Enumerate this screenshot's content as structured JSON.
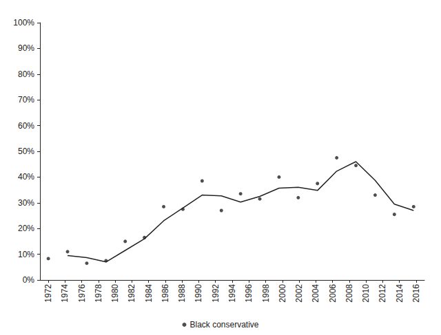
{
  "chart_data": {
    "type": "scatter",
    "x": [
      1972,
      1974.3,
      1976.6,
      1978.9,
      1981.2,
      1983.5,
      1985.8,
      1988.1,
      1990.4,
      1992.7,
      1995,
      1997.3,
      1999.6,
      2001.9,
      2004.2,
      2006.5,
      2008.8,
      2011.1,
      2013.4,
      2015.7
    ],
    "series": [
      {
        "name": "Black conservative",
        "type": "scatter",
        "marker": "circle",
        "color": "#222222",
        "values": [
          8.3,
          11,
          6.5,
          7.5,
          15,
          16.5,
          28.5,
          27.5,
          38.5,
          27,
          33.5,
          31.5,
          40,
          32,
          37.5,
          47.5,
          44.5,
          33,
          25.5,
          28.5
        ]
      },
      {
        "type": "line",
        "line_style": "solid",
        "color": "#222222",
        "values": [
          null,
          9.5,
          8.7,
          7,
          11.5,
          16,
          23,
          28,
          33,
          32.7,
          30.3,
          32.5,
          35.7,
          36,
          34.8,
          42.3,
          46,
          38.7,
          29.5,
          27
        ]
      }
    ],
    "xlim": [
      1971,
      2017
    ],
    "xticks": [
      1972,
      1974,
      1976,
      1978,
      1980,
      1982,
      1984,
      1986,
      1988,
      1990,
      1992,
      1994,
      1996,
      1998,
      2000,
      2002,
      2004,
      2006,
      2008,
      2010,
      2012,
      2014,
      2016
    ],
    "ylim": [
      0,
      100
    ],
    "yticks": [
      {
        "value": 0,
        "label": "0%"
      },
      {
        "value": 10,
        "label": "10%"
      },
      {
        "value": 20,
        "label": "20%"
      },
      {
        "value": 30,
        "label": "30%"
      },
      {
        "value": 40,
        "label": "40%"
      },
      {
        "value": 50,
        "label": "50%"
      },
      {
        "value": 60,
        "label": "60%"
      },
      {
        "value": 70,
        "label": "70%"
      },
      {
        "value": 80,
        "label": "80%"
      },
      {
        "value": 90,
        "label": "90%"
      },
      {
        "value": 100,
        "label": "100%"
      }
    ],
    "grid": false,
    "legend": "bottom"
  }
}
